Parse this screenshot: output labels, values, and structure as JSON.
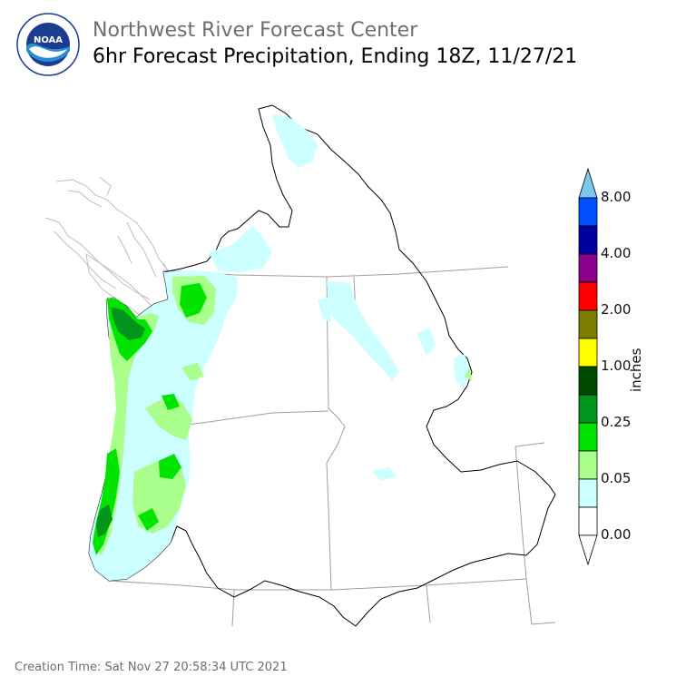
{
  "header": {
    "org_title": "Northwest River Forecast Center",
    "product_title": "6hr Forecast Precipitation, Ending 18Z, 11/27/21"
  },
  "logo": {
    "center_text": "NOAA",
    "ring_text": "NATIONAL OCEANIC AND ATMOSPHERIC ADMINISTRATION · U.S. DEPARTMENT OF COMMERCE"
  },
  "legend": {
    "units": "inches",
    "tick_labels": [
      "0.00",
      "0.05",
      "0.25",
      "1.00",
      "2.00",
      "4.00",
      "8.00"
    ],
    "colors": [
      "#ffffff",
      "#ccffff",
      "#aaff8c",
      "#00e400",
      "#00961e",
      "#004b00",
      "#ffff00",
      "#7d7d00",
      "#ff0000",
      "#8c008c",
      "#0000a0",
      "#0050ff",
      "#78c8f0"
    ]
  },
  "footer": {
    "creation_time": "Creation Time: Sat Nov 27 20:58:34 UTC 2021"
  }
}
